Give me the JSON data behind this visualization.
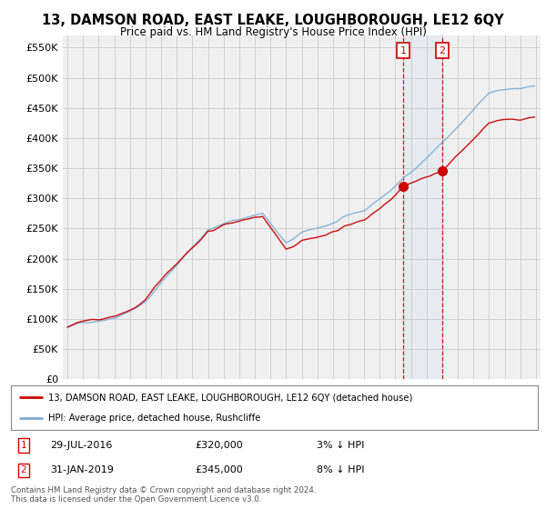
{
  "title": "13, DAMSON ROAD, EAST LEAKE, LOUGHBOROUGH, LE12 6QY",
  "subtitle": "Price paid vs. HM Land Registry's House Price Index (HPI)",
  "ylabel_ticks": [
    "£0",
    "£50K",
    "£100K",
    "£150K",
    "£200K",
    "£250K",
    "£300K",
    "£350K",
    "£400K",
    "£450K",
    "£500K",
    "£550K"
  ],
  "ytick_values": [
    0,
    50000,
    100000,
    150000,
    200000,
    250000,
    300000,
    350000,
    400000,
    450000,
    500000,
    550000
  ],
  "ylim": [
    0,
    570000
  ],
  "sale1_value": 320000,
  "sale1_date_str": "29-JUL-2016",
  "sale1_price_str": "£320,000",
  "sale1_hpi_str": "3% ↓ HPI",
  "sale2_value": 345000,
  "sale2_date_str": "31-JAN-2019",
  "sale2_price_str": "£345,000",
  "sale2_hpi_str": "8% ↓ HPI",
  "legend_line1": "13, DAMSON ROAD, EAST LEAKE, LOUGHBOROUGH, LE12 6QY (detached house)",
  "legend_line2": "HPI: Average price, detached house, Rushcliffe",
  "footer1": "Contains HM Land Registry data © Crown copyright and database right 2024.",
  "footer2": "This data is licensed under the Open Government Licence v3.0.",
  "line_color_red": "#cc0000",
  "line_color_blue": "#7aaed6",
  "background_color": "#ffffff",
  "grid_color": "#cccccc",
  "chart_bg": "#f0f0f0"
}
